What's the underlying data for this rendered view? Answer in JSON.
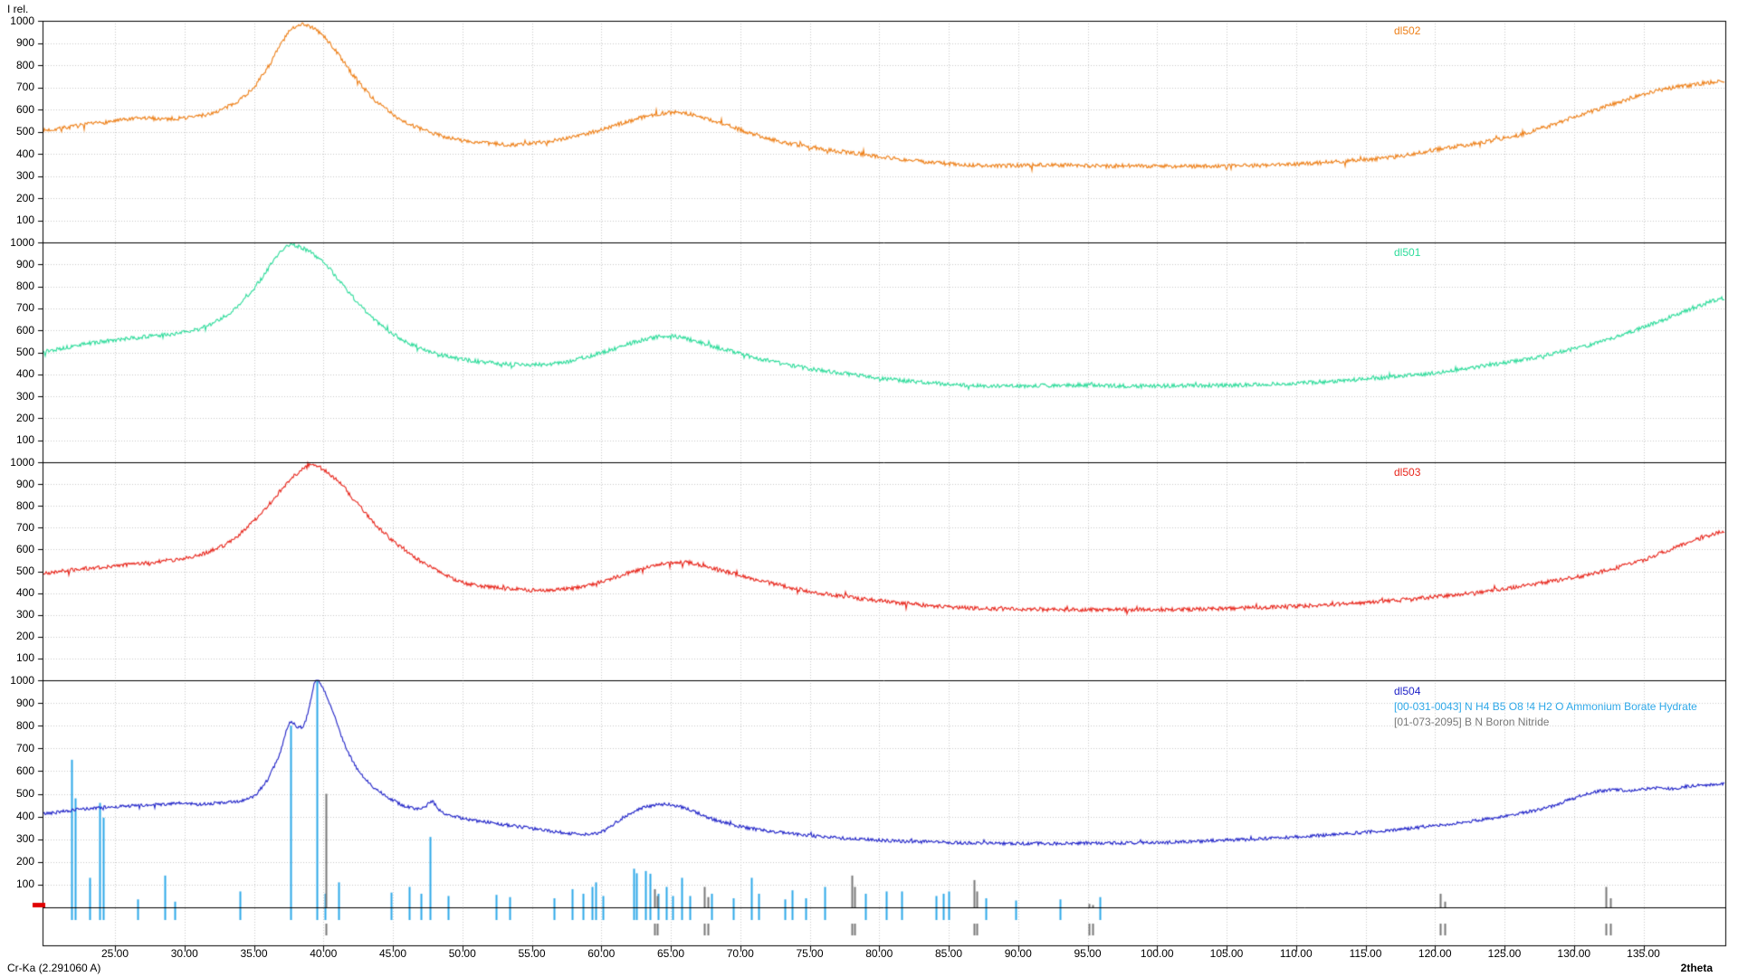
{
  "y_axis": {
    "title": "I rel.",
    "tick_labels": [
      "1000",
      "900",
      "800",
      "700",
      "600",
      "500",
      "400",
      "300",
      "200",
      "100"
    ]
  },
  "x_axis": {
    "label": "2theta",
    "tick_labels": [
      "25.00",
      "30.00",
      "35.00",
      "40.00",
      "45.00",
      "50.00",
      "55.00",
      "60.00",
      "65.00",
      "70.00",
      "75.00",
      "80.00",
      "85.00",
      "90.00",
      "95.00",
      "100.00",
      "105.00",
      "110.00",
      "115.00",
      "120.00",
      "125.00",
      "130.00",
      "135.00"
    ],
    "tick_values": [
      25,
      30,
      35,
      40,
      45,
      50,
      55,
      60,
      65,
      70,
      75,
      80,
      85,
      90,
      95,
      100,
      105,
      110,
      115,
      120,
      125,
      130,
      135
    ],
    "range": [
      19.8,
      140.9
    ]
  },
  "footer": {
    "radiation": "Cr-Ka (2.291060 A)"
  },
  "colors": {
    "background": "#ffffff",
    "grid": "#c9c9c9",
    "axis": "#000000",
    "cursor_marker": "#e00000"
  },
  "chart_data": [
    {
      "type": "line",
      "name": "dl502",
      "color": "#ee8019",
      "panel": 0,
      "noise": 9,
      "seed": 7,
      "ylim": [
        0,
        1000
      ],
      "anchors": [
        [
          19.8,
          505
        ],
        [
          21,
          515
        ],
        [
          23,
          532
        ],
        [
          25,
          548
        ],
        [
          27,
          560
        ],
        [
          29,
          558
        ],
        [
          30.5,
          566
        ],
        [
          32,
          584
        ],
        [
          33.5,
          625
        ],
        [
          35,
          700
        ],
        [
          36.2,
          810
        ],
        [
          37.2,
          920
        ],
        [
          38,
          975
        ],
        [
          38.6,
          985
        ],
        [
          39.3,
          965
        ],
        [
          40,
          930
        ],
        [
          41,
          855
        ],
        [
          42,
          765
        ],
        [
          43.5,
          655
        ],
        [
          45,
          578
        ],
        [
          46.5,
          525
        ],
        [
          48,
          490
        ],
        [
          50,
          460
        ],
        [
          52,
          446
        ],
        [
          54,
          442
        ],
        [
          56,
          455
        ],
        [
          58,
          478
        ],
        [
          60,
          508
        ],
        [
          61.5,
          538
        ],
        [
          63,
          566
        ],
        [
          64.5,
          583
        ],
        [
          65.8,
          585
        ],
        [
          67,
          568
        ],
        [
          68.5,
          540
        ],
        [
          70,
          508
        ],
        [
          72,
          470
        ],
        [
          74,
          441
        ],
        [
          76,
          420
        ],
        [
          78,
          405
        ],
        [
          80,
          388
        ],
        [
          82,
          372
        ],
        [
          84,
          360
        ],
        [
          86,
          351
        ],
        [
          88,
          346
        ],
        [
          90,
          348
        ],
        [
          93,
          350
        ],
        [
          96,
          345
        ],
        [
          99,
          346
        ],
        [
          102,
          344
        ],
        [
          105,
          345
        ],
        [
          108,
          349
        ],
        [
          111,
          357
        ],
        [
          114,
          370
        ],
        [
          117,
          385
        ],
        [
          120,
          418
        ],
        [
          123,
          448
        ],
        [
          126,
          483
        ],
        [
          128,
          520
        ],
        [
          130,
          565
        ],
        [
          132,
          606
        ],
        [
          134,
          650
        ],
        [
          136,
          686
        ],
        [
          138,
          706
        ],
        [
          140,
          724
        ],
        [
          140.9,
          730
        ]
      ]
    },
    {
      "type": "line",
      "name": "dl501",
      "color": "#2edc9b",
      "panel": 1,
      "noise": 9,
      "seed": 13,
      "ylim": [
        0,
        1000
      ],
      "anchors": [
        [
          19.8,
          505
        ],
        [
          21,
          516
        ],
        [
          23,
          540
        ],
        [
          25,
          555
        ],
        [
          27,
          570
        ],
        [
          29,
          582
        ],
        [
          31,
          605
        ],
        [
          32.5,
          648
        ],
        [
          34,
          720
        ],
        [
          35.5,
          830
        ],
        [
          36.6,
          930
        ],
        [
          37.5,
          988
        ],
        [
          38.3,
          978
        ],
        [
          39.2,
          950
        ],
        [
          40.2,
          898
        ],
        [
          41.2,
          820
        ],
        [
          42.4,
          730
        ],
        [
          44,
          632
        ],
        [
          45.5,
          565
        ],
        [
          47,
          518
        ],
        [
          49,
          480
        ],
        [
          51,
          460
        ],
        [
          53,
          447
        ],
        [
          55,
          443
        ],
        [
          57,
          453
        ],
        [
          59,
          480
        ],
        [
          61,
          517
        ],
        [
          62.5,
          548
        ],
        [
          64,
          570
        ],
        [
          65.2,
          573
        ],
        [
          66.5,
          556
        ],
        [
          68,
          528
        ],
        [
          69.5,
          503
        ],
        [
          71,
          476
        ],
        [
          73,
          449
        ],
        [
          75,
          426
        ],
        [
          77,
          408
        ],
        [
          79,
          392
        ],
        [
          81,
          377
        ],
        [
          83,
          364
        ],
        [
          85,
          355
        ],
        [
          87,
          349
        ],
        [
          89,
          346
        ],
        [
          92,
          349
        ],
        [
          95,
          351
        ],
        [
          98,
          347
        ],
        [
          101,
          348
        ],
        [
          104,
          349
        ],
        [
          107,
          353
        ],
        [
          110,
          360
        ],
        [
          113,
          370
        ],
        [
          116,
          384
        ],
        [
          119,
          400
        ],
        [
          122,
          423
        ],
        [
          125,
          452
        ],
        [
          127,
          475
        ],
        [
          129,
          502
        ],
        [
          131,
          532
        ],
        [
          133,
          570
        ],
        [
          135,
          615
        ],
        [
          137,
          662
        ],
        [
          139,
          710
        ],
        [
          140.4,
          740
        ],
        [
          140.9,
          748
        ]
      ]
    },
    {
      "type": "line",
      "name": "dl503",
      "color": "#e8261c",
      "panel": 2,
      "noise": 9,
      "seed": 21,
      "ylim": [
        0,
        1000
      ],
      "anchors": [
        [
          19.8,
          490
        ],
        [
          21,
          500
        ],
        [
          23,
          514
        ],
        [
          25,
          524
        ],
        [
          27,
          537
        ],
        [
          29,
          551
        ],
        [
          31,
          574
        ],
        [
          33,
          624
        ],
        [
          34.5,
          700
        ],
        [
          36,
          800
        ],
        [
          37.5,
          910
        ],
        [
          38.7,
          975
        ],
        [
          39.4,
          985
        ],
        [
          40.2,
          958
        ],
        [
          41,
          915
        ],
        [
          42,
          842
        ],
        [
          43.5,
          732
        ],
        [
          45,
          640
        ],
        [
          46.5,
          566
        ],
        [
          48,
          508
        ],
        [
          50,
          448
        ],
        [
          52,
          428
        ],
        [
          54,
          417
        ],
        [
          56,
          413
        ],
        [
          58,
          423
        ],
        [
          60,
          452
        ],
        [
          62,
          492
        ],
        [
          63.5,
          520
        ],
        [
          65,
          538
        ],
        [
          66.2,
          540
        ],
        [
          67.5,
          523
        ],
        [
          69,
          498
        ],
        [
          70.5,
          472
        ],
        [
          72,
          448
        ],
        [
          74,
          420
        ],
        [
          76,
          398
        ],
        [
          78,
          380
        ],
        [
          80,
          365
        ],
        [
          82,
          352
        ],
        [
          84,
          341
        ],
        [
          86,
          333
        ],
        [
          88,
          328
        ],
        [
          90,
          326
        ],
        [
          93,
          325
        ],
        [
          96,
          323
        ],
        [
          99,
          324
        ],
        [
          102,
          326
        ],
        [
          105,
          329
        ],
        [
          108,
          335
        ],
        [
          111,
          343
        ],
        [
          114,
          353
        ],
        [
          117,
          366
        ],
        [
          120,
          383
        ],
        [
          123,
          404
        ],
        [
          126,
          430
        ],
        [
          129,
          460
        ],
        [
          131,
          484
        ],
        [
          133,
          515
        ],
        [
          135,
          553
        ],
        [
          137,
          600
        ],
        [
          138.5,
          638
        ],
        [
          140,
          668
        ],
        [
          140.9,
          685
        ]
      ]
    },
    {
      "type": "line",
      "name": "dl504",
      "color": "#2023c8",
      "panel": 3,
      "noise": 7,
      "seed": 42,
      "ylim": [
        0,
        1000
      ],
      "anchors": [
        [
          19.8,
          412
        ],
        [
          21,
          422
        ],
        [
          23,
          434
        ],
        [
          25,
          443
        ],
        [
          27,
          449
        ],
        [
          29,
          455
        ],
        [
          30,
          458
        ],
        [
          31,
          454
        ],
        [
          32,
          458
        ],
        [
          33,
          462
        ],
        [
          34,
          468
        ],
        [
          35,
          492
        ],
        [
          36,
          565
        ],
        [
          36.8,
          665
        ],
        [
          37.4,
          782
        ],
        [
          37.7,
          818
        ],
        [
          38.1,
          795
        ],
        [
          38.6,
          805
        ],
        [
          39,
          885
        ],
        [
          39.4,
          995
        ],
        [
          39.9,
          975
        ],
        [
          40.4,
          905
        ],
        [
          41,
          805
        ],
        [
          41.7,
          692
        ],
        [
          42.5,
          602
        ],
        [
          43.5,
          536
        ],
        [
          44.5,
          492
        ],
        [
          45.5,
          456
        ],
        [
          46.5,
          436
        ],
        [
          47.3,
          443
        ],
        [
          47.8,
          466
        ],
        [
          48.3,
          432
        ],
        [
          49,
          406
        ],
        [
          50,
          393
        ],
        [
          51,
          381
        ],
        [
          52.5,
          369
        ],
        [
          54,
          356
        ],
        [
          55.5,
          343
        ],
        [
          57,
          331
        ],
        [
          58.5,
          323
        ],
        [
          60,
          331
        ],
        [
          61.5,
          392
        ],
        [
          62.5,
          426
        ],
        [
          63.5,
          446
        ],
        [
          64.5,
          453
        ],
        [
          65.5,
          446
        ],
        [
          66.5,
          426
        ],
        [
          67.5,
          401
        ],
        [
          68.5,
          379
        ],
        [
          70,
          356
        ],
        [
          71.5,
          341
        ],
        [
          73,
          329
        ],
        [
          75,
          316
        ],
        [
          77,
          306
        ],
        [
          79,
          299
        ],
        [
          81,
          293
        ],
        [
          83,
          289
        ],
        [
          85,
          286
        ],
        [
          87,
          283
        ],
        [
          89,
          281
        ],
        [
          91,
          281
        ],
        [
          93,
          281
        ],
        [
          95,
          283
        ],
        [
          97,
          283
        ],
        [
          99,
          285
        ],
        [
          101,
          287
        ],
        [
          103,
          291
        ],
        [
          105,
          296
        ],
        [
          107,
          301
        ],
        [
          109,
          307
        ],
        [
          111,
          314
        ],
        [
          113,
          321
        ],
        [
          115,
          331
        ],
        [
          117,
          341
        ],
        [
          119,
          353
        ],
        [
          121,
          366
        ],
        [
          123,
          383
        ],
        [
          125,
          401
        ],
        [
          127,
          424
        ],
        [
          128.5,
          447
        ],
        [
          130,
          480
        ],
        [
          131,
          502
        ],
        [
          132,
          513
        ],
        [
          133,
          518
        ],
        [
          134,
          514
        ],
        [
          135,
          520
        ],
        [
          136,
          526
        ],
        [
          137,
          522
        ],
        [
          138,
          531
        ],
        [
          139,
          536
        ],
        [
          140,
          541
        ],
        [
          140.9,
          545
        ]
      ]
    },
    {
      "type": "stick",
      "name": "[00-031-0043] N H4 B5 O8 !4 H2 O Ammonium Borate Hydrate",
      "color": "#2ea8e8",
      "panel": 3,
      "marker_row": 0,
      "lines": [
        [
          21.9,
          650
        ],
        [
          22.15,
          480
        ],
        [
          23.2,
          130
        ],
        [
          23.9,
          460
        ],
        [
          24.15,
          395
        ],
        [
          26.6,
          35
        ],
        [
          28.6,
          140
        ],
        [
          29.3,
          25
        ],
        [
          34.0,
          70
        ],
        [
          37.65,
          800
        ],
        [
          39.5,
          1000
        ],
        [
          40.1,
          60
        ],
        [
          41.1,
          110
        ],
        [
          44.9,
          65
        ],
        [
          46.2,
          90
        ],
        [
          47.0,
          60
        ],
        [
          47.7,
          310
        ],
        [
          49.0,
          50
        ],
        [
          52.4,
          55
        ],
        [
          53.4,
          45
        ],
        [
          56.6,
          40
        ],
        [
          57.9,
          80
        ],
        [
          58.7,
          60
        ],
        [
          59.3,
          90
        ],
        [
          59.6,
          110
        ],
        [
          60.1,
          50
        ],
        [
          62.3,
          170
        ],
        [
          62.55,
          150
        ],
        [
          63.2,
          160
        ],
        [
          63.5,
          148
        ],
        [
          64.1,
          60
        ],
        [
          64.7,
          90
        ],
        [
          65.1,
          50
        ],
        [
          65.8,
          130
        ],
        [
          66.4,
          50
        ],
        [
          67.9,
          60
        ],
        [
          69.5,
          40
        ],
        [
          70.8,
          130
        ],
        [
          71.3,
          60
        ],
        [
          73.2,
          35
        ],
        [
          73.7,
          75
        ],
        [
          74.7,
          40
        ],
        [
          76.1,
          90
        ],
        [
          79.0,
          60
        ],
        [
          80.5,
          70
        ],
        [
          81.6,
          70
        ],
        [
          84.1,
          50
        ],
        [
          84.6,
          60
        ],
        [
          85.0,
          70
        ],
        [
          87.7,
          40
        ],
        [
          89.8,
          30
        ],
        [
          93.0,
          35
        ],
        [
          95.9,
          45
        ]
      ]
    },
    {
      "type": "stick",
      "name": "[01-073-2095] B N Boron Nitride",
      "color": "#787878",
      "panel": 3,
      "marker_row": 1,
      "lines": [
        [
          40.2,
          500
        ],
        [
          63.8,
          80
        ],
        [
          64.05,
          50
        ],
        [
          67.4,
          90
        ],
        [
          67.65,
          45
        ],
        [
          78.0,
          140
        ],
        [
          78.25,
          90
        ],
        [
          86.8,
          120
        ],
        [
          87.05,
          70
        ],
        [
          95.1,
          15
        ],
        [
          95.35,
          10
        ],
        [
          120.35,
          60
        ],
        [
          120.7,
          25
        ],
        [
          132.3,
          90
        ],
        [
          132.65,
          40
        ]
      ]
    }
  ]
}
